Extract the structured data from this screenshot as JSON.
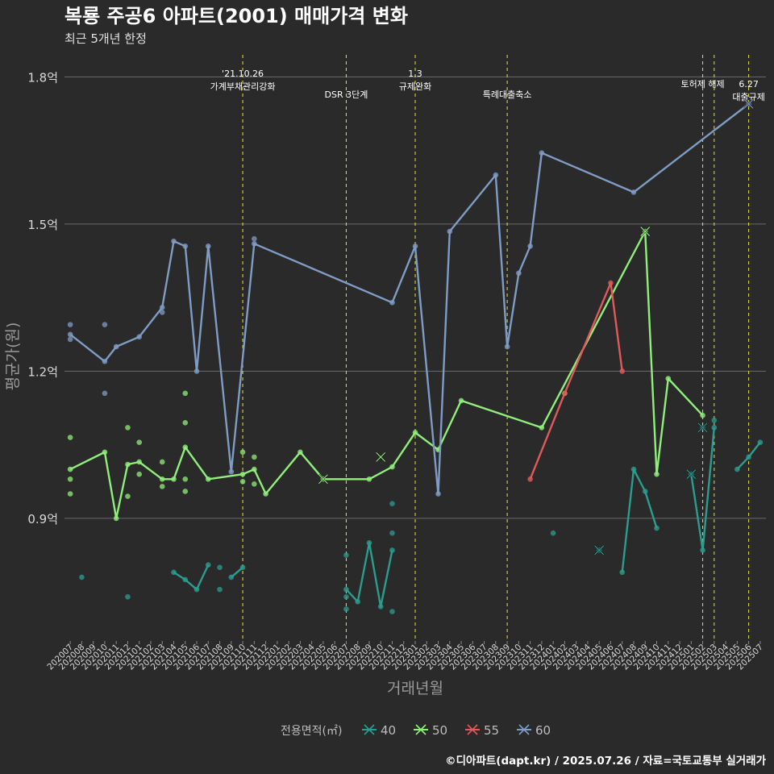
{
  "chart_data": {
    "type": "line",
    "title": "복룡 주공6 아파트(2001) 매매가격 변화",
    "subtitle": "최근 5개년 한정",
    "xlabel": "거래년월",
    "ylabel": "평균가(원)",
    "caption": "©디아파트(dapt.kr) / 2025.07.26 / 자료=국토교통부 실거래가",
    "legend_title": "전용면적(㎡)",
    "y_ticks": [
      {
        "value": 0.9,
        "label": "0.9억"
      },
      {
        "value": 1.2,
        "label": "1.2억"
      },
      {
        "value": 1.5,
        "label": "1.5억"
      },
      {
        "value": 1.8,
        "label": "1.8억"
      }
    ],
    "ylim": [
      0.65,
      1.85
    ],
    "categories": [
      "202007",
      "202008",
      "202009",
      "202010",
      "202011",
      "202012",
      "202101",
      "202102",
      "202103",
      "202104",
      "202105",
      "202106",
      "202107",
      "202108",
      "202109",
      "202110",
      "202111",
      "202112",
      "202201",
      "202202",
      "202203",
      "202204",
      "202205",
      "202206",
      "202207",
      "202208",
      "202209",
      "202210",
      "202211",
      "202212",
      "202301",
      "202302",
      "202303",
      "202304",
      "202305",
      "202306",
      "202307",
      "202308",
      "202309",
      "202310",
      "202311",
      "202312",
      "202401",
      "202402",
      "202403",
      "202404",
      "202405",
      "202406",
      "202407",
      "202408",
      "202409",
      "202410",
      "202411",
      "202412",
      "202501",
      "202502",
      "202503",
      "202504",
      "202505",
      "202506",
      "202507"
    ],
    "series": [
      {
        "name": "40",
        "color": "#2a9d8f",
        "line_segments": [
          [
            [
              "202104",
              0.79
            ],
            [
              "202105",
              0.775
            ],
            [
              "202106",
              0.755
            ],
            [
              "202107",
              0.805
            ]
          ],
          [
            [
              "202109",
              0.78
            ],
            [
              "202110",
              0.8
            ]
          ],
          [
            [
              "202207",
              0.755
            ],
            [
              "202208",
              0.73
            ],
            [
              "202209",
              0.85
            ],
            [
              "202210",
              0.72
            ],
            [
              "202211",
              0.835
            ]
          ],
          [
            [
              "202407",
              0.79
            ],
            [
              "202408",
              1.0
            ],
            [
              "202409",
              0.955
            ],
            [
              "202410",
              0.88
            ]
          ],
          [
            [
              "202501",
              0.99
            ],
            [
              "202502",
              0.835
            ],
            [
              "202503",
              1.085
            ]
          ],
          [
            [
              "202505",
              1.0
            ],
            [
              "202506",
              1.025
            ],
            [
              "202507",
              1.055
            ]
          ]
        ],
        "points": [
          [
            "202008",
            0.78
          ],
          [
            "202012",
            0.74
          ],
          [
            "202108",
            0.8
          ],
          [
            "202108",
            0.755
          ],
          [
            "202207",
            0.825
          ],
          [
            "202207",
            0.74
          ],
          [
            "202207",
            0.715
          ],
          [
            "202211",
            0.93
          ],
          [
            "202211",
            0.87
          ],
          [
            "202211",
            0.71
          ],
          [
            "202401",
            0.87
          ],
          [
            "202405",
            0.835
          ],
          [
            "202502",
            1.085
          ],
          [
            "202503",
            1.1
          ]
        ],
        "crosses": [
          [
            "202405",
            0.835
          ],
          [
            "202501",
            0.99
          ],
          [
            "202502",
            1.085
          ]
        ]
      },
      {
        "name": "50",
        "color": "#90ee7a",
        "line_segments": [
          [
            [
              "202007",
              1.0
            ],
            [
              "202010",
              1.035
            ],
            [
              "202011",
              0.9
            ],
            [
              "202012",
              1.01
            ],
            [
              "202101",
              1.015
            ],
            [
              "202103",
              0.98
            ],
            [
              "202104",
              0.98
            ],
            [
              "202105",
              1.045
            ],
            [
              "202107",
              0.98
            ],
            [
              "202110",
              0.99
            ],
            [
              "202111",
              1.0
            ],
            [
              "202112",
              0.95
            ],
            [
              "202203",
              1.035
            ],
            [
              "202205",
              0.98
            ],
            [
              "202209",
              0.98
            ],
            [
              "202211",
              1.005
            ],
            [
              "202301",
              1.075
            ],
            [
              "202303",
              1.04
            ],
            [
              "202305",
              1.14
            ],
            [
              "202312",
              1.085
            ],
            [
              "202409",
              1.485
            ],
            [
              "202410",
              0.99
            ],
            [
              "202411",
              1.185
            ],
            [
              "202502",
              1.11
            ]
          ]
        ],
        "points": [
          [
            "202007",
            1.065
          ],
          [
            "202007",
            0.98
          ],
          [
            "202007",
            0.95
          ],
          [
            "202012",
            1.085
          ],
          [
            "202012",
            0.945
          ],
          [
            "202101",
            1.055
          ],
          [
            "202101",
            0.99
          ],
          [
            "202103",
            1.015
          ],
          [
            "202103",
            0.965
          ],
          [
            "202105",
            1.155
          ],
          [
            "202105",
            1.095
          ],
          [
            "202105",
            0.98
          ],
          [
            "202105",
            0.955
          ],
          [
            "202110",
            1.035
          ],
          [
            "202110",
            0.975
          ],
          [
            "202111",
            1.025
          ],
          [
            "202111",
            0.97
          ],
          [
            "202402",
            1.155
          ]
        ],
        "crosses": [
          [
            "202205",
            0.98
          ],
          [
            "202210",
            1.025
          ],
          [
            "202409",
            1.485
          ]
        ]
      },
      {
        "name": "55",
        "color": "#e05a5a",
        "line_segments": [
          [
            [
              "202311",
              0.98
            ],
            [
              "202402",
              1.155
            ],
            [
              "202406",
              1.38
            ],
            [
              "202407",
              1.2
            ]
          ]
        ],
        "points": [],
        "crosses": []
      },
      {
        "name": "60",
        "color": "#7f9cc4",
        "line_segments": [
          [
            [
              "202007",
              1.275
            ],
            [
              "202010",
              1.22
            ],
            [
              "202011",
              1.25
            ],
            [
              "202101",
              1.27
            ],
            [
              "202103",
              1.33
            ],
            [
              "202104",
              1.465
            ],
            [
              "202105",
              1.455
            ],
            [
              "202106",
              1.2
            ],
            [
              "202107",
              1.455
            ],
            [
              "202109",
              0.995
            ],
            [
              "202111",
              1.46
            ],
            [
              "202211",
              1.34
            ],
            [
              "202301",
              1.455
            ],
            [
              "202303",
              0.95
            ],
            [
              "202304",
              1.485
            ],
            [
              "202308",
              1.6
            ],
            [
              "202309",
              1.25
            ],
            [
              "202310",
              1.4
            ],
            [
              "202311",
              1.455
            ],
            [
              "202312",
              1.645
            ],
            [
              "202408",
              1.565
            ],
            [
              "202506",
              1.745
            ]
          ]
        ],
        "points": [
          [
            "202007",
            1.295
          ],
          [
            "202007",
            1.265
          ],
          [
            "202010",
            1.295
          ],
          [
            "202010",
            1.155
          ],
          [
            "202103",
            1.32
          ],
          [
            "202111",
            1.47
          ]
        ],
        "crosses": [
          [
            "202506",
            1.745
          ]
        ]
      }
    ],
    "annotations": [
      {
        "x": "202110",
        "lines": [
          "'21.10.26",
          "가계부채관리강화"
        ],
        "offset": 0
      },
      {
        "x": "202207",
        "lines": [
          "DSR 3단계"
        ],
        "offset": 1
      },
      {
        "x": "202301",
        "lines": [
          "1.3",
          "규제완화"
        ],
        "offset": 0
      },
      {
        "x": "202309",
        "lines": [
          "특례대출축소"
        ],
        "offset": 1
      },
      {
        "x": "202502",
        "lines": [
          "토허제 해제"
        ],
        "offset": 0
      },
      {
        "x": "202503",
        "lines": [],
        "offset": 0
      },
      {
        "x": "202506",
        "lines": [
          "6.27",
          "대출규제"
        ],
        "offset": 1
      }
    ]
  }
}
